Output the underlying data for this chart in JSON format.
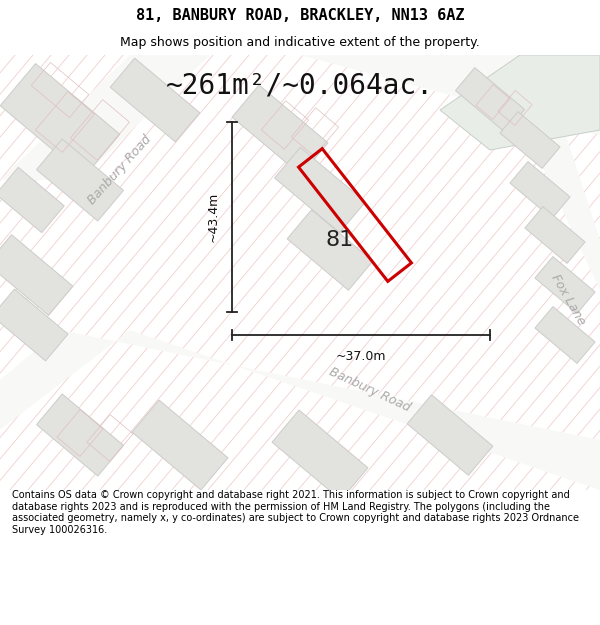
{
  "title_line1": "81, BANBURY ROAD, BRACKLEY, NN13 6AZ",
  "title_line2": "Map shows position and indicative extent of the property.",
  "area_text": "~261m²/~0.064ac.",
  "dim_height": "~43.4m",
  "dim_width": "~37.0m",
  "property_number": "81",
  "road_label_upper": "Banbury Road",
  "road_label_lower": "Banbury Road",
  "road_label_right": "Fox Lane",
  "footer_text": "Contains OS data © Crown copyright and database right 2021. This information is subject to Crown copyright and database rights 2023 and is reproduced with the permission of HM Land Registry. The polygons (including the associated geometry, namely x, y co-ordinates) are subject to Crown copyright and database rights 2023 Ordnance Survey 100026316.",
  "map_bg": "#f2f2f0",
  "hatch_color": "#e8b0b0",
  "property_color": "#cc0000",
  "block_fill": "#e2e2de",
  "block_edge": "#ccccca",
  "block_edge_light": "#e0c0c0",
  "road_fill": "#f8f8f6",
  "white_bg": "#ffffff",
  "green_area": "#e8ede8",
  "title_fontsize": 11,
  "subtitle_fontsize": 9,
  "area_fontsize": 20,
  "label_fontsize": 9,
  "dim_fontsize": 9,
  "footer_fontsize": 7
}
